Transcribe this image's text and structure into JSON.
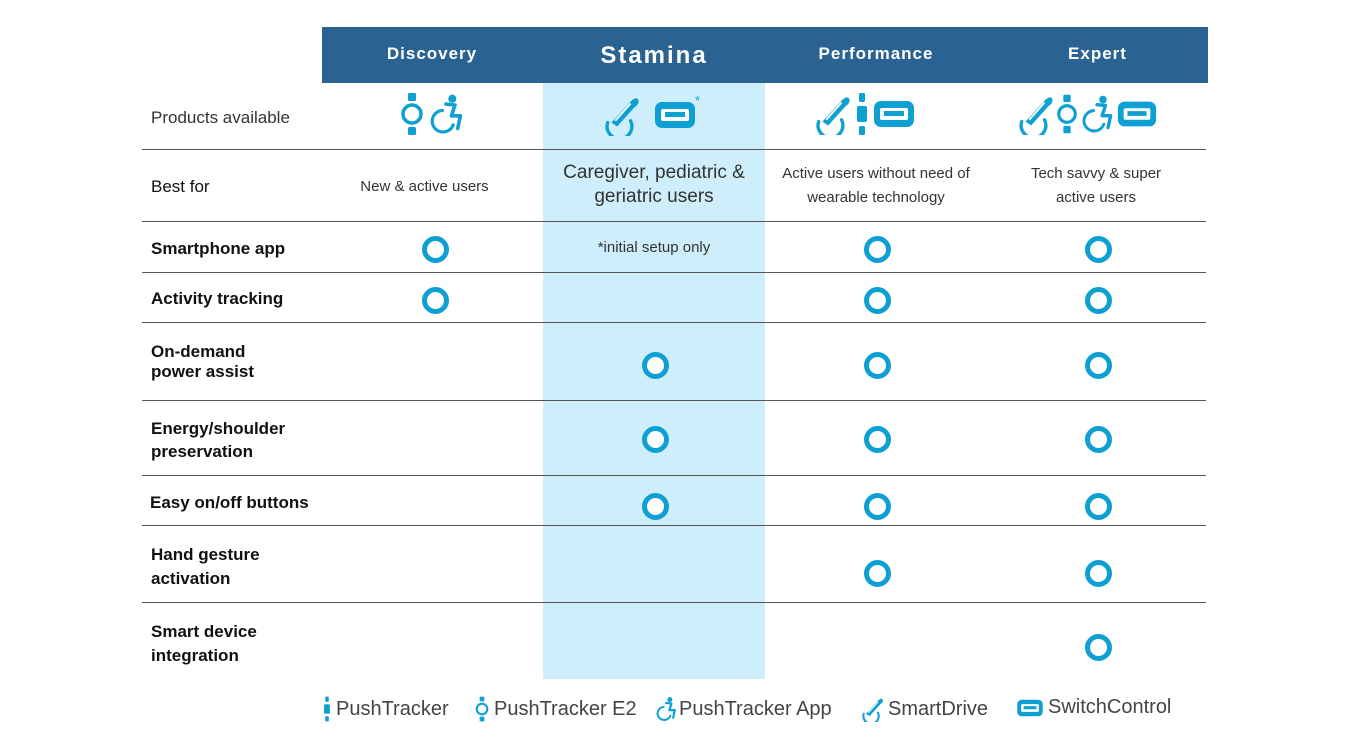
{
  "columns": [
    {
      "title": "Discovery"
    },
    {
      "title": "Stamina"
    },
    {
      "title": "Performance"
    },
    {
      "title": "Expert"
    }
  ],
  "rows": {
    "products": {
      "label": "Products available"
    },
    "best_for": {
      "label": "Best for",
      "values": [
        "New & active users",
        "Caregiver, pediatric & geriatric users",
        "Active users without need of wearable technology",
        "Tech savvy & super active users"
      ]
    },
    "smartphone_app": {
      "label": "Smartphone app",
      "stamina_note": "*initial setup only"
    },
    "activity_tracking": {
      "label": "Activity tracking"
    },
    "on_demand": {
      "label": "On-demand power assist"
    },
    "energy": {
      "label": "Energy/shoulder preservation"
    },
    "easy_onoff": {
      "label": "Easy on/off buttons"
    },
    "hand_gesture": {
      "label": "Hand gesture activation"
    },
    "smart_device": {
      "label": "Smart device integration"
    }
  },
  "stamina_asterisk": "*",
  "legend": [
    {
      "icon": "pushtracker-icon",
      "label": "PushTracker"
    },
    {
      "icon": "pushtracker-e2-icon",
      "label": "PushTracker E2"
    },
    {
      "icon": "pushtracker-app-icon",
      "label": "PushTracker App"
    },
    {
      "icon": "smartdrive-icon",
      "label": "SmartDrive"
    },
    {
      "icon": "switchcontrol-icon",
      "label": "SwitchControl"
    }
  ],
  "colors": {
    "header": "#2a6291",
    "accent": "#0ea0d2",
    "highlight": "#cdeefa"
  }
}
